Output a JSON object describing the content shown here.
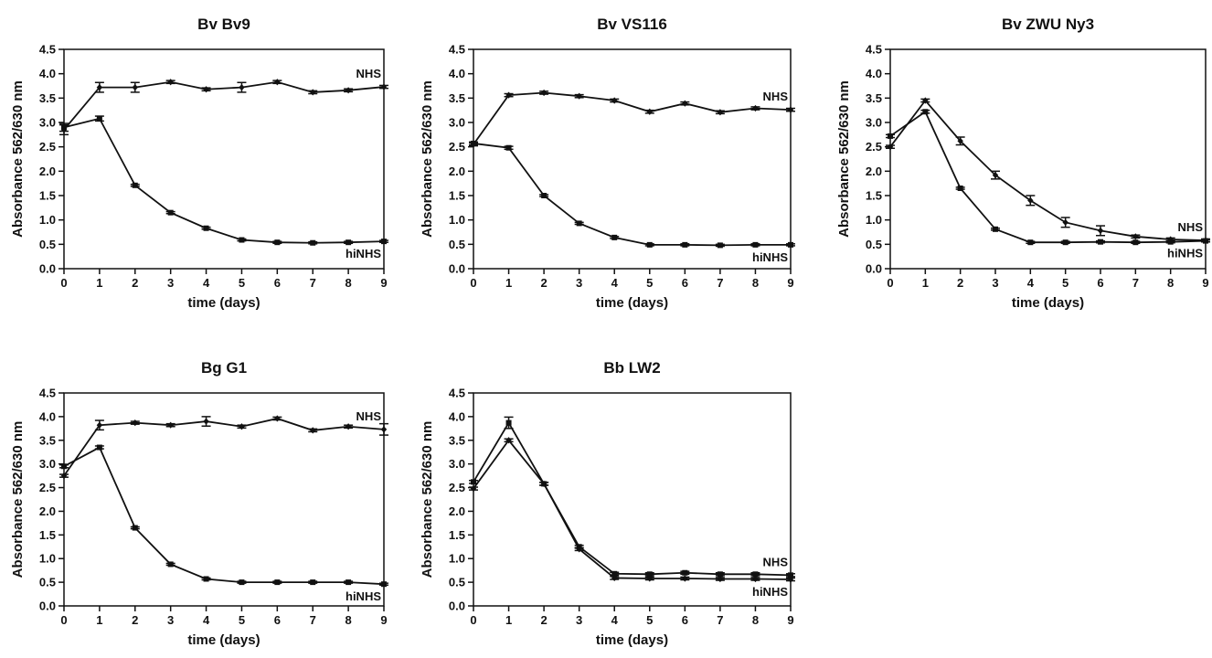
{
  "chart_data": [
    {
      "type": "line",
      "title": "Bv Bv9",
      "xlabel": "time (days)",
      "ylabel": "Absorbance 562/630 nm",
      "x": [
        0,
        1,
        2,
        3,
        4,
        5,
        6,
        7,
        8,
        9
      ],
      "xlim": [
        0,
        9
      ],
      "ylim": [
        0,
        4.5
      ],
      "xticks": [
        "0",
        "1",
        "2",
        "3",
        "4",
        "5",
        "6",
        "7",
        "8",
        "9"
      ],
      "yticks": [
        "0.0",
        "0.5",
        "1.0",
        "1.5",
        "2.0",
        "2.5",
        "3.0",
        "3.5",
        "4.0",
        "4.5"
      ],
      "grid": false,
      "series": [
        {
          "name": "NHS",
          "marker": "diamond",
          "values": [
            2.85,
            3.72,
            3.72,
            3.83,
            3.68,
            3.72,
            3.83,
            3.62,
            3.66,
            3.73
          ],
          "errors": [
            0.1,
            0.1,
            0.1,
            0.03,
            0.03,
            0.1,
            0.03,
            0.03,
            0.03,
            0.03
          ]
        },
        {
          "name": "hiNHS",
          "marker": "square",
          "values": [
            2.9,
            3.08,
            1.71,
            1.15,
            0.83,
            0.59,
            0.54,
            0.53,
            0.54,
            0.56
          ],
          "errors": [
            0.08,
            0.05,
            0.02,
            0.02,
            0.02,
            0.02,
            0.02,
            0.02,
            0.02,
            0.02
          ]
        }
      ]
    },
    {
      "type": "line",
      "title": "Bv VS116",
      "xlabel": "time (days)",
      "ylabel": "Absorbance 562/630 nm",
      "x": [
        0,
        1,
        2,
        3,
        4,
        5,
        6,
        7,
        8,
        9
      ],
      "xlim": [
        0,
        9
      ],
      "ylim": [
        0,
        4.5
      ],
      "xticks": [
        "0",
        "1",
        "2",
        "3",
        "4",
        "5",
        "6",
        "7",
        "8",
        "9"
      ],
      "yticks": [
        "0.0",
        "0.5",
        "1.0",
        "1.5",
        "2.0",
        "2.5",
        "3.0",
        "3.5",
        "4.0",
        "4.5"
      ],
      "grid": false,
      "series": [
        {
          "name": "NHS",
          "marker": "diamond",
          "values": [
            2.55,
            3.56,
            3.61,
            3.54,
            3.45,
            3.22,
            3.39,
            3.21,
            3.29,
            3.26
          ],
          "errors": [
            0.03,
            0.03,
            0.03,
            0.03,
            0.03,
            0.03,
            0.03,
            0.03,
            0.03,
            0.03
          ]
        },
        {
          "name": "hiNHS",
          "marker": "square",
          "values": [
            2.57,
            2.48,
            1.5,
            0.93,
            0.64,
            0.49,
            0.49,
            0.48,
            0.49,
            0.49
          ],
          "errors": [
            0.03,
            0.03,
            0.02,
            0.02,
            0.02,
            0.02,
            0.02,
            0.02,
            0.02,
            0.02
          ]
        }
      ]
    },
    {
      "type": "line",
      "title": "Bv ZWU Ny3",
      "xlabel": "time (days)",
      "ylabel": "Absorbance 562/630 nm",
      "x": [
        0,
        1,
        2,
        3,
        4,
        5,
        6,
        7,
        8,
        9
      ],
      "xlim": [
        0,
        9
      ],
      "ylim": [
        0,
        4.5
      ],
      "xticks": [
        "0",
        "1",
        "2",
        "3",
        "4",
        "5",
        "6",
        "7",
        "8",
        "9"
      ],
      "yticks": [
        "0.0",
        "0.5",
        "1.0",
        "1.5",
        "2.0",
        "2.5",
        "3.0",
        "3.5",
        "4.0",
        "4.5"
      ],
      "grid": false,
      "series": [
        {
          "name": "NHS",
          "marker": "diamond",
          "values": [
            2.5,
            3.45,
            2.62,
            1.92,
            1.4,
            0.95,
            0.78,
            0.66,
            0.6,
            0.58
          ],
          "errors": [
            0.03,
            0.03,
            0.08,
            0.08,
            0.1,
            0.1,
            0.1,
            0.03,
            0.03,
            0.03
          ]
        },
        {
          "name": "hiNHS",
          "marker": "square",
          "values": [
            2.72,
            3.22,
            1.65,
            0.81,
            0.54,
            0.54,
            0.55,
            0.54,
            0.55,
            0.57
          ],
          "errors": [
            0.03,
            0.03,
            0.02,
            0.02,
            0.02,
            0.02,
            0.02,
            0.02,
            0.02,
            0.02
          ]
        }
      ]
    },
    {
      "type": "line",
      "title": "Bg G1",
      "xlabel": "time (days)",
      "ylabel": "Absorbance 562/630 nm",
      "x": [
        0,
        1,
        2,
        3,
        4,
        5,
        6,
        7,
        8,
        9
      ],
      "xlim": [
        0,
        9
      ],
      "ylim": [
        0,
        4.5
      ],
      "xticks": [
        "0",
        "1",
        "2",
        "3",
        "4",
        "5",
        "6",
        "7",
        "8",
        "9"
      ],
      "yticks": [
        "0.0",
        "0.5",
        "1.0",
        "1.5",
        "2.0",
        "2.5",
        "3.0",
        "3.5",
        "4.0",
        "4.5"
      ],
      "grid": false,
      "series": [
        {
          "name": "NHS",
          "marker": "diamond",
          "values": [
            2.75,
            3.82,
            3.87,
            3.82,
            3.9,
            3.79,
            3.96,
            3.71,
            3.79,
            3.73
          ],
          "errors": [
            0.03,
            0.1,
            0.03,
            0.03,
            0.1,
            0.03,
            0.03,
            0.03,
            0.03,
            0.12
          ]
        },
        {
          "name": "hiNHS",
          "marker": "square",
          "values": [
            2.95,
            3.35,
            1.65,
            0.88,
            0.57,
            0.5,
            0.5,
            0.5,
            0.5,
            0.46
          ],
          "errors": [
            0.03,
            0.03,
            0.02,
            0.02,
            0.02,
            0.02,
            0.02,
            0.02,
            0.02,
            0.02
          ]
        }
      ]
    },
    {
      "type": "line",
      "title": "Bb LW2",
      "xlabel": "time (days)",
      "ylabel": "Absorbance 562/630 nm",
      "x": [
        0,
        1,
        2,
        3,
        4,
        5,
        6,
        7,
        8,
        9
      ],
      "xlim": [
        0,
        9
      ],
      "ylim": [
        0,
        4.5
      ],
      "xticks": [
        "0",
        "1",
        "2",
        "3",
        "4",
        "5",
        "6",
        "7",
        "8",
        "9"
      ],
      "yticks": [
        "0.0",
        "0.5",
        "1.0",
        "1.5",
        "2.0",
        "2.5",
        "3.0",
        "3.5",
        "4.0",
        "4.5"
      ],
      "grid": false,
      "series": [
        {
          "name": "NHS",
          "marker": "square",
          "values": [
            2.62,
            3.87,
            2.58,
            1.25,
            0.68,
            0.67,
            0.7,
            0.67,
            0.67,
            0.65
          ],
          "errors": [
            0.03,
            0.12,
            0.03,
            0.03,
            0.03,
            0.03,
            0.03,
            0.03,
            0.03,
            0.03
          ]
        },
        {
          "name": "hiNHS",
          "marker": "diamond",
          "values": [
            2.48,
            3.5,
            2.58,
            1.2,
            0.59,
            0.58,
            0.58,
            0.57,
            0.57,
            0.56
          ],
          "errors": [
            0.03,
            0.03,
            0.03,
            0.03,
            0.03,
            0.03,
            0.03,
            0.03,
            0.03,
            0.03
          ]
        }
      ]
    }
  ]
}
